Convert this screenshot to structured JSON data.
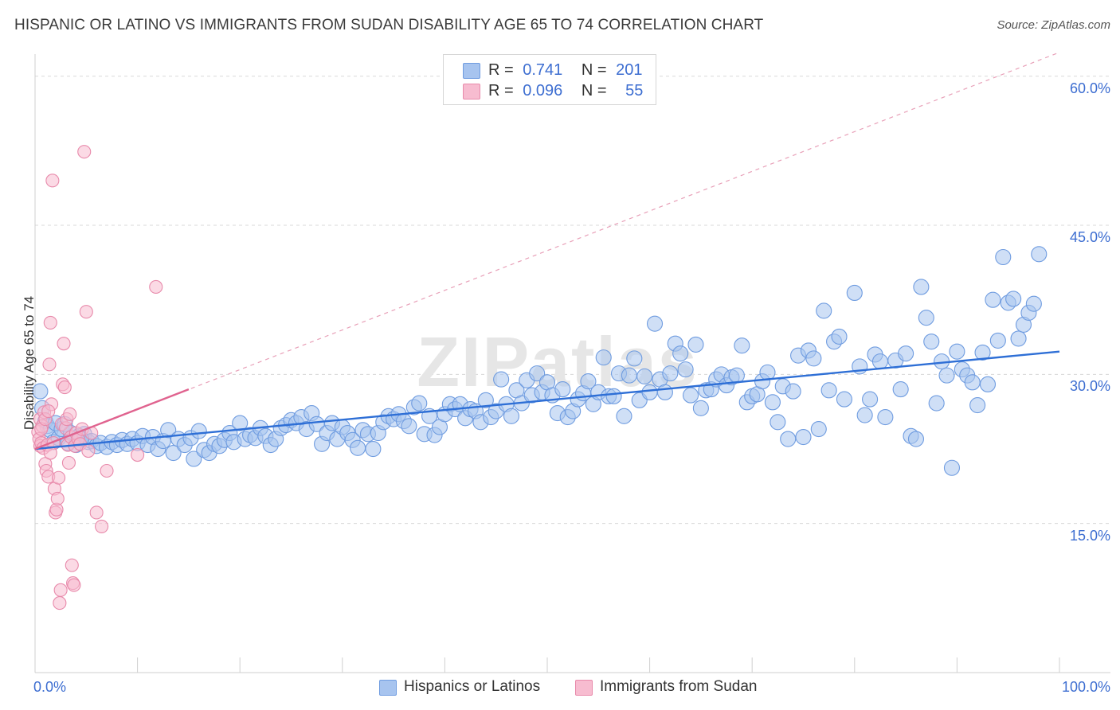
{
  "title": "HISPANIC OR LATINO VS IMMIGRANTS FROM SUDAN DISABILITY AGE 65 TO 74 CORRELATION CHART",
  "source": "Source: ZipAtlas.com",
  "watermark": "ZIPatlas",
  "legend_top": {
    "rows": [
      {
        "r_label": "R =",
        "r_value": "0.741",
        "n_label": "N =",
        "n_value": "201",
        "color": "#a7c4ef",
        "border": "#6f9ce0"
      },
      {
        "r_label": "R =",
        "r_value": "0.096",
        "n_label": "N =",
        "n_value": "55",
        "color": "#f7bcd0",
        "border": "#e88aab"
      }
    ]
  },
  "legend_bottom": [
    {
      "label": "Hispanics or Latinos",
      "color": "#a7c4ef",
      "border": "#6f9ce0"
    },
    {
      "label": "Immigrants from Sudan",
      "color": "#f7bcd0",
      "border": "#e88aab"
    }
  ],
  "colors": {
    "blue_fill": "#a7c4ef",
    "blue_stroke": "#6f9ce0",
    "blue_line": "#2e6fd6",
    "pink_fill": "#f7bcd0",
    "pink_stroke": "#e88aab",
    "pink_line": "#e0638f",
    "grid": "#d8d8d8",
    "axis_text": "#3d6ed1"
  },
  "chart_data": {
    "type": "scatter",
    "title": "HISPANIC OR LATINO VS IMMIGRANTS FROM SUDAN DISABILITY AGE 65 TO 74 CORRELATION CHART",
    "xlabel": "",
    "ylabel": "Disability Age 65 to 74",
    "xlim": [
      0,
      100
    ],
    "ylim": [
      0,
      61.5
    ],
    "x_tick_labels": [
      "0.0%",
      "100.0%"
    ],
    "y_tick_labels": [
      "15.0%",
      "30.0%",
      "45.0%",
      "60.0%"
    ],
    "y_ticks": [
      15,
      30,
      45,
      60
    ],
    "grid": true,
    "legend": "top-center",
    "series": [
      {
        "name": "Hispanics or Latinos",
        "R": 0.741,
        "N": 201,
        "trend": {
          "x": [
            0,
            100
          ],
          "y": [
            22.5,
            32.3
          ]
        },
        "points": [
          [
            0.5,
            28.3
          ],
          [
            0.7,
            26.6
          ],
          [
            1,
            25.3
          ],
          [
            1.2,
            24.8
          ],
          [
            1.5,
            24.4
          ],
          [
            1.8,
            23.2
          ],
          [
            2,
            25.1
          ],
          [
            2.3,
            23.6
          ],
          [
            2.6,
            24.5
          ],
          [
            2.9,
            25
          ],
          [
            3.2,
            23.1
          ],
          [
            3.5,
            24.1
          ],
          [
            4,
            22.9
          ],
          [
            4.3,
            23.8
          ],
          [
            4.8,
            24
          ],
          [
            5.2,
            23.2
          ],
          [
            5.5,
            23.3
          ],
          [
            6,
            22.8
          ],
          [
            6.4,
            23.1
          ],
          [
            7,
            22.7
          ],
          [
            7.5,
            23.2
          ],
          [
            8,
            22.9
          ],
          [
            8.5,
            23.4
          ],
          [
            9,
            23
          ],
          [
            9.5,
            23.5
          ],
          [
            10,
            23.1
          ],
          [
            10.5,
            23.8
          ],
          [
            11,
            22.9
          ],
          [
            11.5,
            23.7
          ],
          [
            12,
            22.5
          ],
          [
            12.5,
            23.3
          ],
          [
            13,
            24.4
          ],
          [
            13.5,
            22.1
          ],
          [
            14,
            23.5
          ],
          [
            14.6,
            22.9
          ],
          [
            15.2,
            23.6
          ],
          [
            15.5,
            21.5
          ],
          [
            16,
            24.3
          ],
          [
            16.5,
            22.4
          ],
          [
            17,
            22.1
          ],
          [
            17.5,
            23
          ],
          [
            18,
            22.8
          ],
          [
            18.5,
            23.4
          ],
          [
            19,
            24.1
          ],
          [
            19.4,
            23.2
          ],
          [
            20,
            25.1
          ],
          [
            20.5,
            23.5
          ],
          [
            21,
            23.9
          ],
          [
            21.5,
            23.6
          ],
          [
            22,
            24.6
          ],
          [
            22.5,
            23.8
          ],
          [
            23,
            22.9
          ],
          [
            23.5,
            23.5
          ],
          [
            24,
            24.6
          ],
          [
            24.5,
            24.9
          ],
          [
            25,
            25.4
          ],
          [
            25.5,
            25.1
          ],
          [
            26,
            25.7
          ],
          [
            26.5,
            24.5
          ],
          [
            27,
            26.1
          ],
          [
            27.5,
            25
          ],
          [
            28,
            23
          ],
          [
            28.5,
            24.1
          ],
          [
            29,
            25.1
          ],
          [
            29.5,
            23.5
          ],
          [
            30,
            24.7
          ],
          [
            30.5,
            24.1
          ],
          [
            31,
            23.4
          ],
          [
            31.5,
            22.6
          ],
          [
            32,
            24.4
          ],
          [
            32.5,
            24
          ],
          [
            33,
            22.5
          ],
          [
            33.5,
            24.1
          ],
          [
            34,
            25.2
          ],
          [
            34.5,
            25.8
          ],
          [
            35,
            25.5
          ],
          [
            35.5,
            26
          ],
          [
            36,
            25.3
          ],
          [
            36.5,
            24.8
          ],
          [
            37,
            26.7
          ],
          [
            37.5,
            27.1
          ],
          [
            38,
            24
          ],
          [
            38.5,
            25.8
          ],
          [
            39,
            23.9
          ],
          [
            39.5,
            24.7
          ],
          [
            40,
            26
          ],
          [
            40.5,
            27
          ],
          [
            41,
            26.5
          ],
          [
            41.5,
            27
          ],
          [
            42,
            25.6
          ],
          [
            42.5,
            26.5
          ],
          [
            43,
            26.3
          ],
          [
            43.5,
            25.2
          ],
          [
            44,
            27.4
          ],
          [
            44.5,
            25.7
          ],
          [
            45,
            26.3
          ],
          [
            45.5,
            29.5
          ],
          [
            46,
            27
          ],
          [
            46.5,
            25.8
          ],
          [
            47,
            28.4
          ],
          [
            47.5,
            27.1
          ],
          [
            48,
            29.4
          ],
          [
            48.5,
            27.9
          ],
          [
            49,
            30.1
          ],
          [
            49.5,
            28.2
          ],
          [
            50,
            29.2
          ],
          [
            50.5,
            27.9
          ],
          [
            51,
            26.1
          ],
          [
            51.5,
            28.5
          ],
          [
            52,
            25.7
          ],
          [
            52.5,
            26.3
          ],
          [
            53,
            27.5
          ],
          [
            53.5,
            28.1
          ],
          [
            54,
            29.3
          ],
          [
            54.5,
            27
          ],
          [
            55,
            28.2
          ],
          [
            55.5,
            31.7
          ],
          [
            56,
            27.8
          ],
          [
            56.5,
            27.8
          ],
          [
            57,
            30.1
          ],
          [
            57.5,
            25.8
          ],
          [
            58,
            29.9
          ],
          [
            58.5,
            31.6
          ],
          [
            59,
            27.4
          ],
          [
            59.5,
            29.8
          ],
          [
            60,
            28.2
          ],
          [
            60.5,
            35.1
          ],
          [
            61,
            29.5
          ],
          [
            61.5,
            28.2
          ],
          [
            62,
            30.1
          ],
          [
            62.5,
            33.1
          ],
          [
            63,
            32.1
          ],
          [
            63.5,
            30.5
          ],
          [
            64,
            27.9
          ],
          [
            64.5,
            33
          ],
          [
            65,
            26.6
          ],
          [
            65.5,
            28.4
          ],
          [
            66,
            28.5
          ],
          [
            66.5,
            29.5
          ],
          [
            67,
            30
          ],
          [
            67.5,
            28.9
          ],
          [
            68,
            29.7
          ],
          [
            68.5,
            29.9
          ],
          [
            69,
            32.9
          ],
          [
            69.5,
            27.2
          ],
          [
            70,
            27.8
          ],
          [
            70.5,
            28
          ],
          [
            71,
            29.3
          ],
          [
            71.5,
            30.2
          ],
          [
            72,
            27.2
          ],
          [
            72.5,
            25.2
          ],
          [
            73,
            28.8
          ],
          [
            73.5,
            23.5
          ],
          [
            74,
            28.3
          ],
          [
            74.5,
            31.9
          ],
          [
            75,
            23.7
          ],
          [
            75.5,
            32.4
          ],
          [
            76,
            31.6
          ],
          [
            76.5,
            24.5
          ],
          [
            77,
            36.4
          ],
          [
            77.5,
            28.4
          ],
          [
            78,
            33.3
          ],
          [
            78.5,
            33.8
          ],
          [
            79,
            27.5
          ],
          [
            80,
            38.2
          ],
          [
            80.5,
            30.8
          ],
          [
            81,
            25.9
          ],
          [
            81.5,
            27.5
          ],
          [
            82,
            32
          ],
          [
            82.5,
            31.3
          ],
          [
            83,
            25.7
          ],
          [
            84,
            31.4
          ],
          [
            84.5,
            28.5
          ],
          [
            85,
            32.1
          ],
          [
            85.5,
            23.8
          ],
          [
            86,
            23.5
          ],
          [
            86.5,
            38.8
          ],
          [
            87,
            35.7
          ],
          [
            87.5,
            33.3
          ],
          [
            88,
            27.1
          ],
          [
            88.5,
            31.3
          ],
          [
            89,
            29.9
          ],
          [
            89.5,
            20.6
          ],
          [
            90,
            32.3
          ],
          [
            90.5,
            30.5
          ],
          [
            91,
            29.9
          ],
          [
            91.5,
            29.2
          ],
          [
            92,
            26.9
          ],
          [
            92.5,
            32.2
          ],
          [
            93,
            29
          ],
          [
            93.5,
            37.5
          ],
          [
            94,
            33.4
          ],
          [
            94.5,
            41.8
          ],
          [
            95,
            37.2
          ],
          [
            95.5,
            37.6
          ],
          [
            96,
            33.6
          ],
          [
            96.5,
            35
          ],
          [
            97,
            36.2
          ],
          [
            97.5,
            37.1
          ],
          [
            98,
            42.1
          ],
          [
            4.5,
            23.5
          ]
        ]
      },
      {
        "name": "Immigrants from Sudan",
        "R": 0.096,
        "N": 55,
        "trend": {
          "x": [
            0,
            15
          ],
          "y": [
            22.5,
            28.5
          ]
        },
        "trend_extended": {
          "x": [
            0,
            100
          ],
          "y": [
            22.5,
            62.4
          ]
        },
        "points": [
          [
            0.3,
            24.2
          ],
          [
            0.4,
            23.5
          ],
          [
            0.5,
            22.8
          ],
          [
            0.5,
            25.5
          ],
          [
            0.6,
            23.1
          ],
          [
            0.7,
            24.8
          ],
          [
            0.8,
            22.6
          ],
          [
            0.9,
            26.2
          ],
          [
            1,
            21
          ],
          [
            1.1,
            20.3
          ],
          [
            1.2,
            22.9
          ],
          [
            1.3,
            19.7
          ],
          [
            1.4,
            31
          ],
          [
            1.5,
            35.2
          ],
          [
            1.6,
            27
          ],
          [
            1.7,
            49.5
          ],
          [
            1.8,
            23.1
          ],
          [
            1.9,
            18.5
          ],
          [
            2,
            16.1
          ],
          [
            2.1,
            16.4
          ],
          [
            2.2,
            17.5
          ],
          [
            2.3,
            19.6
          ],
          [
            2.4,
            7
          ],
          [
            2.5,
            8.3
          ],
          [
            2.6,
            25
          ],
          [
            2.7,
            29
          ],
          [
            2.8,
            33.1
          ],
          [
            2.9,
            28.7
          ],
          [
            3,
            24.6
          ],
          [
            3.1,
            25.5
          ],
          [
            3.2,
            22.9
          ],
          [
            3.3,
            21.1
          ],
          [
            3.4,
            26
          ],
          [
            3.5,
            23.7
          ],
          [
            3.6,
            10.8
          ],
          [
            3.7,
            9
          ],
          [
            3.8,
            8.8
          ],
          [
            3.9,
            22.8
          ],
          [
            4,
            24.1
          ],
          [
            4.2,
            23.5
          ],
          [
            4.4,
            23
          ],
          [
            4.6,
            24.5
          ],
          [
            4.8,
            52.4
          ],
          [
            5,
            36.3
          ],
          [
            5.2,
            22.3
          ],
          [
            5.5,
            24.1
          ],
          [
            6,
            16.1
          ],
          [
            6.5,
            14.7
          ],
          [
            7,
            20.3
          ],
          [
            10,
            21.9
          ],
          [
            11.8,
            38.8
          ],
          [
            0.6,
            24.5
          ],
          [
            1,
            25.5
          ],
          [
            1.3,
            26.3
          ],
          [
            1.5,
            22.1
          ]
        ]
      }
    ]
  }
}
